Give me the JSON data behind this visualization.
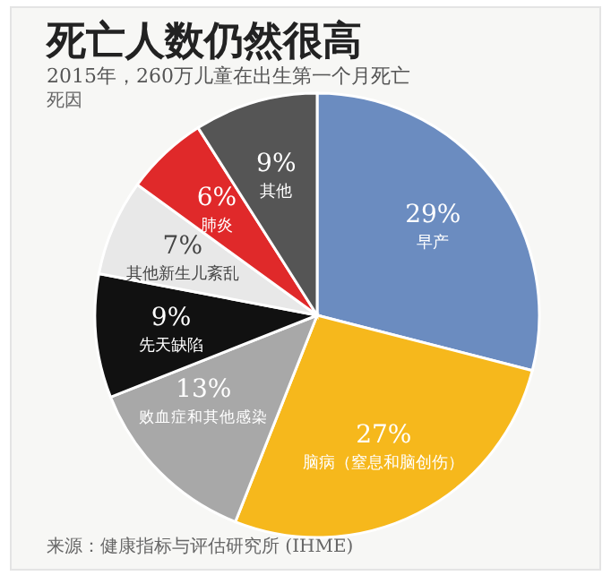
{
  "chart_data": {
    "type": "pie",
    "title": "死亡人数仍然很高",
    "subtitle": "2015年，260万儿童在出生第一个月死亡",
    "annotations": [
      "死因",
      "来源：健康指标与评估研究所 (IHME)"
    ],
    "categories": [
      "早产",
      "脑病（窒息和脑创伤）",
      "败血症和其他感染",
      "先天缺陷",
      "其他新生儿紊乱",
      "肺炎",
      "其他"
    ],
    "values": [
      29,
      27,
      13,
      9,
      7,
      6,
      9
    ],
    "value_labels": [
      "29%",
      "27%",
      "13%",
      "9%",
      "7%",
      "6%",
      "9%"
    ],
    "colors": [
      "#6b8cc0",
      "#f6b81c",
      "#a8a8a8",
      "#111111",
      "#e8e8e8",
      "#e0292a",
      "#555555"
    ]
  }
}
